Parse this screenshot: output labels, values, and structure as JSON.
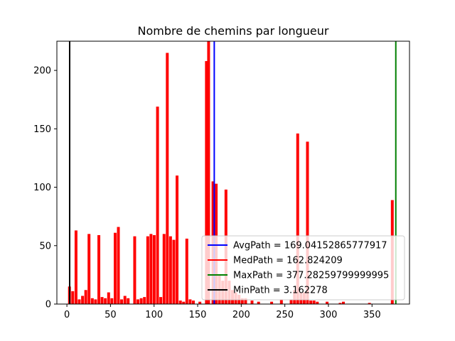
{
  "chart_data": {
    "type": "bar",
    "title": "Nombre de chemins par longueur",
    "xlabel": "",
    "ylabel": "",
    "xlim": [
      -11.5,
      393.0
    ],
    "ylim": [
      0,
      225
    ],
    "xticks": [
      0,
      50,
      100,
      150,
      200,
      250,
      300,
      350
    ],
    "yticks": [
      0,
      50,
      100,
      150,
      200
    ],
    "bin_width": 3.74,
    "bar_color": "#ff0000",
    "grid": false,
    "legend_position": "lower-right",
    "bars": [
      {
        "x": 3.2,
        "y": 15
      },
      {
        "x": 6.9,
        "y": 11
      },
      {
        "x": 10.7,
        "y": 63
      },
      {
        "x": 14.4,
        "y": 4
      },
      {
        "x": 18.2,
        "y": 7
      },
      {
        "x": 21.9,
        "y": 12
      },
      {
        "x": 25.6,
        "y": 60
      },
      {
        "x": 29.4,
        "y": 5
      },
      {
        "x": 33.1,
        "y": 4
      },
      {
        "x": 36.9,
        "y": 59
      },
      {
        "x": 40.6,
        "y": 6
      },
      {
        "x": 44.3,
        "y": 5
      },
      {
        "x": 48.1,
        "y": 10
      },
      {
        "x": 51.8,
        "y": 5
      },
      {
        "x": 55.6,
        "y": 61
      },
      {
        "x": 59.3,
        "y": 66
      },
      {
        "x": 63.0,
        "y": 4
      },
      {
        "x": 66.8,
        "y": 7
      },
      {
        "x": 70.5,
        "y": 5
      },
      {
        "x": 78.0,
        "y": 58
      },
      {
        "x": 81.7,
        "y": 4
      },
      {
        "x": 85.5,
        "y": 5
      },
      {
        "x": 89.2,
        "y": 6
      },
      {
        "x": 93.0,
        "y": 58
      },
      {
        "x": 96.7,
        "y": 60
      },
      {
        "x": 100.4,
        "y": 59
      },
      {
        "x": 104.2,
        "y": 169
      },
      {
        "x": 107.9,
        "y": 6
      },
      {
        "x": 111.7,
        "y": 60
      },
      {
        "x": 115.4,
        "y": 215
      },
      {
        "x": 119.1,
        "y": 58
      },
      {
        "x": 122.9,
        "y": 55
      },
      {
        "x": 126.6,
        "y": 110
      },
      {
        "x": 130.4,
        "y": 3
      },
      {
        "x": 134.1,
        "y": 2
      },
      {
        "x": 137.8,
        "y": 56
      },
      {
        "x": 141.6,
        "y": 4
      },
      {
        "x": 145.3,
        "y": 3
      },
      {
        "x": 152.8,
        "y": 2
      },
      {
        "x": 160.3,
        "y": 208
      },
      {
        "x": 162.8,
        "y": 225
      },
      {
        "x": 167.8,
        "y": 105
      },
      {
        "x": 171.5,
        "y": 103
      },
      {
        "x": 175.2,
        "y": 25
      },
      {
        "x": 179.0,
        "y": 20
      },
      {
        "x": 182.7,
        "y": 98
      },
      {
        "x": 186.5,
        "y": 20
      },
      {
        "x": 190.2,
        "y": 12
      },
      {
        "x": 193.9,
        "y": 10
      },
      {
        "x": 197.7,
        "y": 8
      },
      {
        "x": 201.4,
        "y": 5
      },
      {
        "x": 205.2,
        "y": 5
      },
      {
        "x": 212.6,
        "y": 3
      },
      {
        "x": 220.1,
        "y": 2
      },
      {
        "x": 235.1,
        "y": 2
      },
      {
        "x": 246.3,
        "y": 4
      },
      {
        "x": 257.5,
        "y": 4
      },
      {
        "x": 261.3,
        "y": 12
      },
      {
        "x": 265.0,
        "y": 146
      },
      {
        "x": 268.8,
        "y": 10
      },
      {
        "x": 272.5,
        "y": 10
      },
      {
        "x": 276.2,
        "y": 139
      },
      {
        "x": 280.0,
        "y": 3
      },
      {
        "x": 283.7,
        "y": 3
      },
      {
        "x": 287.5,
        "y": 2
      },
      {
        "x": 298.7,
        "y": 2
      },
      {
        "x": 313.7,
        "y": 1
      },
      {
        "x": 317.4,
        "y": 2
      },
      {
        "x": 347.3,
        "y": 1
      },
      {
        "x": 373.5,
        "y": 89
      }
    ],
    "vlines": [
      {
        "name": "AvgPath = 169.04152865777917",
        "x": 169.04152865777917,
        "color": "#0000ff"
      },
      {
        "name": "MedPath = 162.824209",
        "x": 162.824209,
        "color": "#ff0000"
      },
      {
        "name": "MaxPath = 377.28259799999995",
        "x": 377.28259799999995,
        "color": "#008000"
      },
      {
        "name": "MinPath = 3.162278",
        "x": 3.162278,
        "color": "#000000"
      }
    ]
  }
}
